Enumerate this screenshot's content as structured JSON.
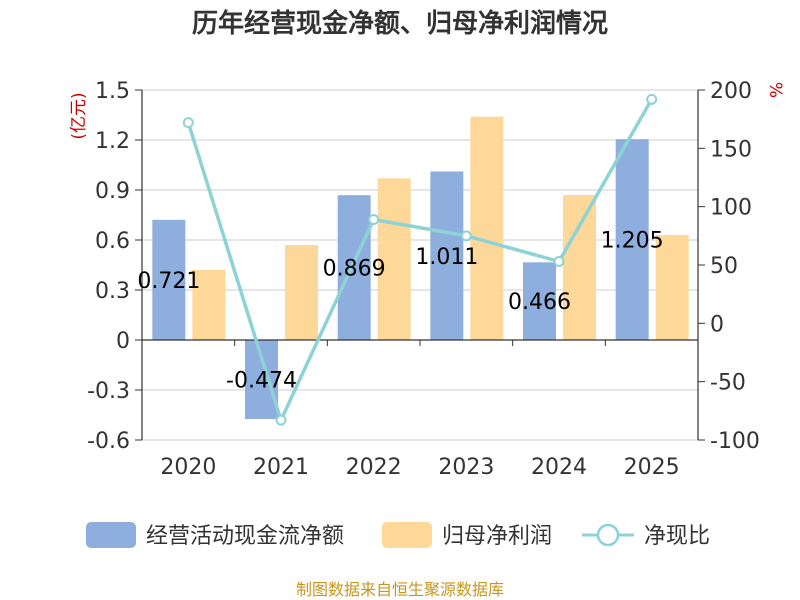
{
  "chart_data": {
    "type": "bar",
    "title": "历年经营现金净额、归母净利润情况",
    "categories": [
      "2020",
      "2021",
      "2022",
      "2023",
      "2024",
      "2025"
    ],
    "series": [
      {
        "name": "经营活动现金流净额",
        "type": "bar",
        "axis": "left",
        "color": "#8eaedd",
        "values": [
          0.721,
          -0.474,
          0.869,
          1.011,
          0.466,
          1.205
        ],
        "data_labels": [
          "0.721",
          "-0.474",
          "0.869",
          "1.011",
          "0.466",
          "1.205"
        ]
      },
      {
        "name": "归母净利润",
        "type": "bar",
        "axis": "left",
        "color": "#fed899",
        "values": [
          0.42,
          0.57,
          0.97,
          1.34,
          0.87,
          0.63
        ]
      },
      {
        "name": "净现比",
        "type": "line",
        "axis": "right",
        "color": "#8dd3d6",
        "values": [
          172,
          -83,
          89,
          75,
          53,
          192
        ]
      }
    ],
    "y_left": {
      "unit": "(亿元)",
      "ylim": [
        -0.6,
        1.5
      ],
      "ticks": [
        "1.5",
        "1.2",
        "0.9",
        "0.6",
        "0.3",
        "0",
        "-0.3",
        "-0.6"
      ],
      "tick_values": [
        1.5,
        1.2,
        0.9,
        0.6,
        0.3,
        0,
        -0.3,
        -0.6
      ]
    },
    "y_right": {
      "unit": "%",
      "ylim": [
        -100,
        200
      ],
      "ticks": [
        "200",
        "150",
        "100",
        "50",
        "0",
        "-50",
        "-100"
      ],
      "tick_values": [
        200,
        150,
        100,
        50,
        0,
        -50,
        -100
      ]
    },
    "grid": true,
    "legend_position": "bottom"
  },
  "source": "制图数据来自恒生聚源数据库"
}
